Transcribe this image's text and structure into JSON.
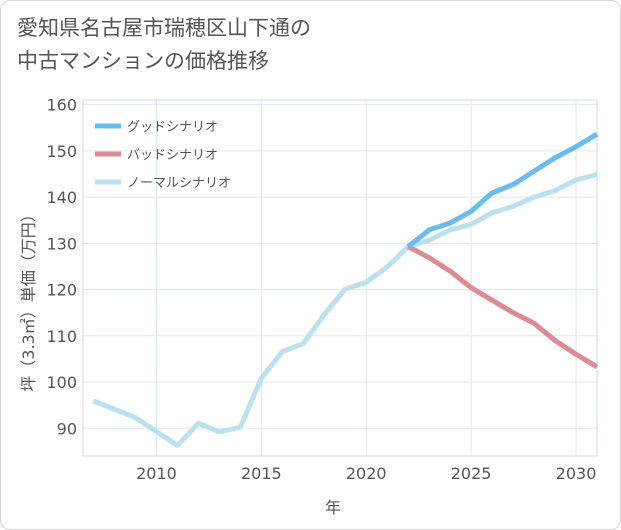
{
  "title_line1": "愛知県名古屋市瑞穂区山下通の",
  "title_line2": "中古マンションの価格推移",
  "chart_data": {
    "type": "line",
    "xlabel": "年",
    "ylabel": "坪（3.3㎡）単価（万円）",
    "xlim": [
      2006.5,
      2031
    ],
    "ylim": [
      84,
      161
    ],
    "x_ticks": [
      2010,
      2015,
      2020,
      2025,
      2030
    ],
    "y_ticks": [
      90,
      100,
      110,
      120,
      130,
      140,
      150,
      160
    ],
    "grid": true,
    "legend_position": "top-left",
    "series": [
      {
        "name": "グッドシナリオ",
        "color": "#6bbcee",
        "x": [
          2022,
          2023,
          2024,
          2025,
          2026,
          2027,
          2028,
          2029,
          2030,
          2031
        ],
        "y": [
          129.3,
          132.9,
          134.4,
          136.9,
          140.9,
          142.7,
          145.6,
          148.5,
          150.9,
          153.6
        ]
      },
      {
        "name": "バッドシナリオ",
        "color": "#dc8b93",
        "x": [
          2022,
          2023,
          2024,
          2025,
          2026,
          2027,
          2028,
          2029,
          2030,
          2031
        ],
        "y": [
          129.3,
          126.9,
          124.0,
          120.4,
          117.7,
          115.0,
          112.7,
          109.0,
          106.0,
          103.3
        ]
      },
      {
        "name": "ノーマルシナリオ",
        "color": "#bde0ef",
        "x": [
          2007,
          2008,
          2009,
          2010,
          2011,
          2012,
          2013,
          2014,
          2015,
          2016,
          2017,
          2018,
          2019,
          2020,
          2021,
          2022,
          2023,
          2024,
          2025,
          2026,
          2027,
          2028,
          2029,
          2030,
          2031
        ],
        "y": [
          95.9,
          94.1,
          92.3,
          89.3,
          86.3,
          91.1,
          89.2,
          90.2,
          100.8,
          106.6,
          108.3,
          114.6,
          120.1,
          121.6,
          124.9,
          129.3,
          130.7,
          132.9,
          134.1,
          136.6,
          138.0,
          140.0,
          141.4,
          143.7,
          144.9
        ]
      }
    ]
  }
}
